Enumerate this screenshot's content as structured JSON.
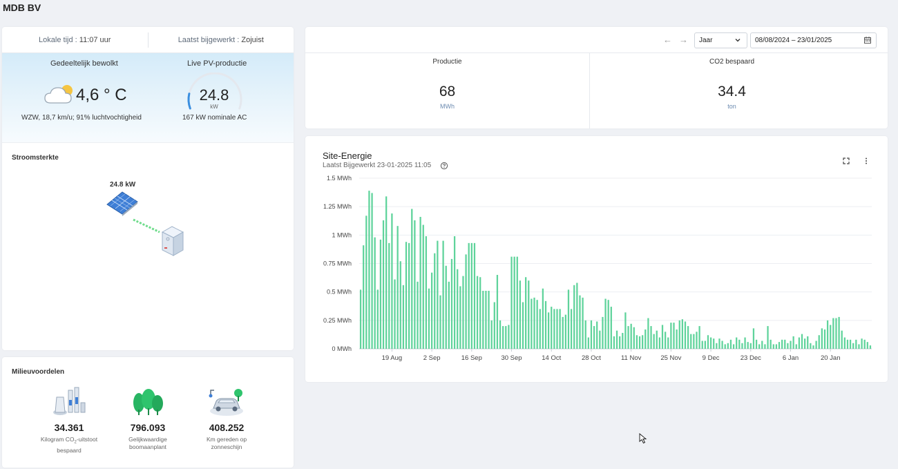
{
  "site": {
    "title": "MDB BV"
  },
  "header": {
    "local_time_label": "Lokale tijd :",
    "local_time": "11:07 uur",
    "updated_label": "Laatst bijgewerkt :",
    "updated": "Zojuist"
  },
  "weather": {
    "description": "Gedeeltelijk bewolkt",
    "temperature": "4,6 ° C",
    "details": "WZW, 18,7 km/u; 91% luchtvochtigheid",
    "icon": "partly-cloudy-icon"
  },
  "pv": {
    "title": "Live PV-productie",
    "value": "24.8",
    "unit": "kW",
    "nominal": "167 kW nominale AC",
    "gauge_fraction": 0.149
  },
  "stroom": {
    "title": "Stroomsterkte",
    "power": "24.8 kW"
  },
  "milieu": {
    "title": "Milieuvoordelen",
    "items": [
      {
        "value": "34.361",
        "label_pre": "Kilogram CO",
        "label_sub": "2",
        "label_post": "-uitstoot bespaard",
        "icon": "factory-icon"
      },
      {
        "value": "796.093",
        "label": "Gelijkwaardige boomaanplant",
        "icon": "trees-icon"
      },
      {
        "value": "408.252",
        "label": "Km gereden op zonneschijn",
        "icon": "electric-car-icon"
      }
    ]
  },
  "toolbar": {
    "period": "Jaar",
    "date_range": "08/08/2024 – 23/01/2025"
  },
  "kpis": [
    {
      "title": "Productie",
      "value": "68",
      "unit": "MWh"
    },
    {
      "title": "CO2 bespaard",
      "value": "34.4",
      "unit": "ton"
    }
  ],
  "chart": {
    "title": "Site-Energie",
    "subtitle": "Laatst Bijgewerkt 23-01-2025 11:05"
  },
  "chart_data": {
    "type": "bar",
    "title": "Site-Energie",
    "ylabel": "",
    "xlabel": "",
    "ylim": [
      0,
      1.5
    ],
    "yticks": [
      "0 MWh",
      "0.25 MWh",
      "0.5 MWh",
      "0.75 MWh",
      "1 MWh",
      "1.25 MWh",
      "1.5 MWh"
    ],
    "ytick_values": [
      0,
      0.25,
      0.5,
      0.75,
      1,
      1.25,
      1.5
    ],
    "xtick_labels": [
      "19 Aug",
      "2 Sep",
      "16 Sep",
      "30 Sep",
      "14 Oct",
      "28 Oct",
      "11 Nov",
      "25 Nov",
      "9 Dec",
      "23 Dec",
      "6 Jan",
      "20 Jan"
    ],
    "start_date": "2024-08-08",
    "grid": true,
    "color": "#5fd39b",
    "values": [
      0.52,
      0.91,
      1.17,
      1.39,
      1.37,
      0.98,
      0.52,
      0.96,
      1.13,
      1.34,
      0.93,
      1.19,
      0.61,
      1.08,
      0.77,
      0.56,
      0.94,
      0.93,
      1.23,
      1.13,
      0.59,
      1.16,
      1.09,
      0.99,
      0.53,
      0.67,
      0.84,
      0.95,
      0.47,
      0.95,
      0.73,
      0.59,
      0.79,
      0.99,
      0.7,
      0.55,
      0.64,
      0.83,
      0.93,
      0.93,
      0.93,
      0.64,
      0.63,
      0.51,
      0.51,
      0.51,
      0.25,
      0.41,
      0.65,
      0.25,
      0.2,
      0.2,
      0.21,
      0.81,
      0.81,
      0.81,
      0.6,
      0.41,
      0.63,
      0.6,
      0.44,
      0.45,
      0.43,
      0.35,
      0.53,
      0.42,
      0.32,
      0.37,
      0.35,
      0.35,
      0.35,
      0.28,
      0.3,
      0.52,
      0.35,
      0.56,
      0.58,
      0.47,
      0.45,
      0.25,
      0.1,
      0.25,
      0.2,
      0.24,
      0.16,
      0.28,
      0.44,
      0.43,
      0.37,
      0.11,
      0.16,
      0.11,
      0.14,
      0.32,
      0.2,
      0.22,
      0.19,
      0.12,
      0.11,
      0.12,
      0.17,
      0.27,
      0.2,
      0.13,
      0.16,
      0.1,
      0.21,
      0.15,
      0.1,
      0.23,
      0.23,
      0.17,
      0.25,
      0.26,
      0.24,
      0.2,
      0.13,
      0.13,
      0.15,
      0.2,
      0.07,
      0.07,
      0.12,
      0.1,
      0.09,
      0.05,
      0.09,
      0.07,
      0.04,
      0.05,
      0.08,
      0.04,
      0.1,
      0.08,
      0.05,
      0.1,
      0.06,
      0.05,
      0.18,
      0.08,
      0.04,
      0.07,
      0.04,
      0.2,
      0.08,
      0.04,
      0.04,
      0.06,
      0.08,
      0.08,
      0.05,
      0.07,
      0.11,
      0.04,
      0.1,
      0.13,
      0.09,
      0.11,
      0.05,
      0.03,
      0.07,
      0.12,
      0.18,
      0.17,
      0.25,
      0.21,
      0.27,
      0.27,
      0.28,
      0.16,
      0.1,
      0.08,
      0.08,
      0.05,
      0.08,
      0.04,
      0.09,
      0.08,
      0.06,
      0.03
    ]
  }
}
